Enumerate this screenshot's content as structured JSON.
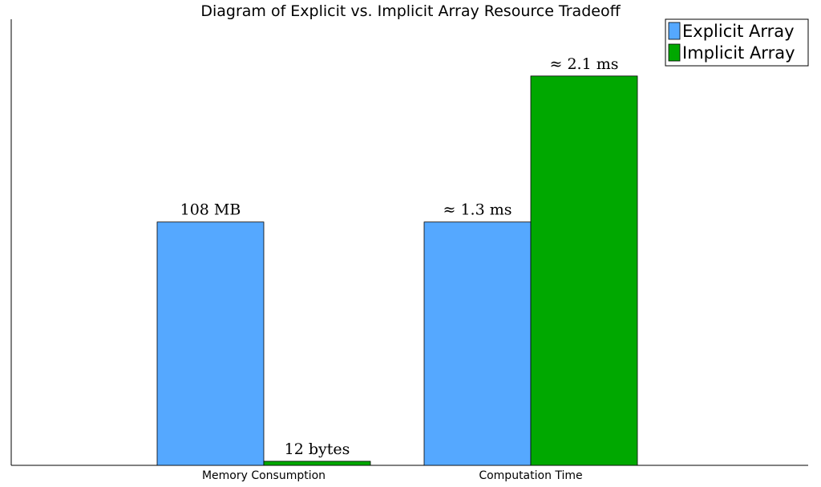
{
  "chart_data": {
    "type": "bar",
    "title": "Diagram of Explicit vs. Implicit Array Resource Tradeoff",
    "categories": [
      "Memory Consumption",
      "Computation Time"
    ],
    "series": [
      {
        "name": "Explicit Array",
        "color": "#55a8ff",
        "values": [
          0.6,
          0.6
        ],
        "labels": [
          "108 MB",
          "≈ 1.3 ms"
        ]
      },
      {
        "name": "Implicit Array",
        "color": "#00a800",
        "values": [
          0.01,
          0.96
        ],
        "labels": [
          "12 bytes",
          "≈ 2.1 ms"
        ]
      }
    ],
    "xlabel": "",
    "ylabel": "",
    "ylim": [
      0,
      1.1
    ],
    "grid": false,
    "legend": "top-right"
  }
}
